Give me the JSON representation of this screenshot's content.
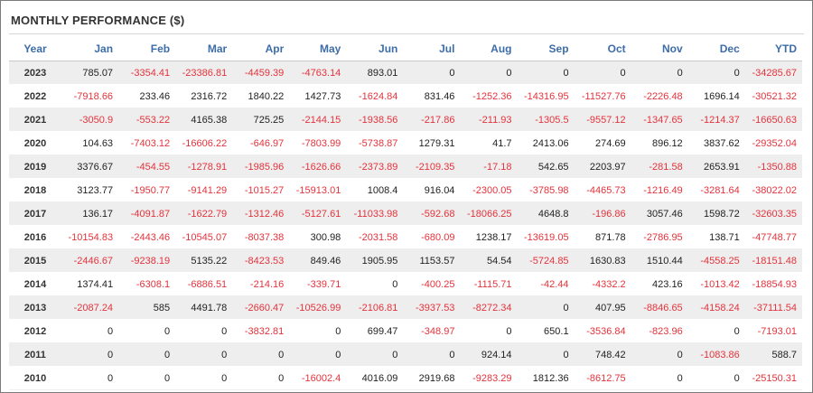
{
  "title": "MONTHLY PERFORMANCE ($)",
  "colors": {
    "header": "#3d6da8",
    "negative": "#e4333c",
    "stripe": "#eeeeee"
  },
  "columns": [
    "Year",
    "Jan",
    "Feb",
    "Mar",
    "Apr",
    "May",
    "Jun",
    "Jul",
    "Aug",
    "Sep",
    "Oct",
    "Nov",
    "Dec",
    "YTD"
  ],
  "rows": [
    [
      "2023",
      "785.07",
      "-3354.41",
      "-23386.81",
      "-4459.39",
      "-4763.14",
      "893.01",
      "0",
      "0",
      "0",
      "0",
      "0",
      "0",
      "-34285.67"
    ],
    [
      "2022",
      "-7918.66",
      "233.46",
      "2316.72",
      "1840.22",
      "1427.73",
      "-1624.84",
      "831.46",
      "-1252.36",
      "-14316.95",
      "-11527.76",
      "-2226.48",
      "1696.14",
      "-30521.32"
    ],
    [
      "2021",
      "-3050.9",
      "-553.22",
      "4165.38",
      "725.25",
      "-2144.15",
      "-1938.56",
      "-217.86",
      "-211.93",
      "-1305.5",
      "-9557.12",
      "-1347.65",
      "-1214.37",
      "-16650.63"
    ],
    [
      "2020",
      "104.63",
      "-7403.12",
      "-16606.22",
      "-646.97",
      "-7803.99",
      "-5738.87",
      "1279.31",
      "41.7",
      "2413.06",
      "274.69",
      "896.12",
      "3837.62",
      "-29352.04"
    ],
    [
      "2019",
      "3376.67",
      "-454.55",
      "-1278.91",
      "-1985.96",
      "-1626.66",
      "-2373.89",
      "-2109.35",
      "-17.18",
      "542.65",
      "2203.97",
      "-281.58",
      "2653.91",
      "-1350.88"
    ],
    [
      "2018",
      "3123.77",
      "-1950.77",
      "-9141.29",
      "-1015.27",
      "-15913.01",
      "1008.4",
      "916.04",
      "-2300.05",
      "-3785.98",
      "-4465.73",
      "-1216.49",
      "-3281.64",
      "-38022.02"
    ],
    [
      "2017",
      "136.17",
      "-4091.87",
      "-1622.79",
      "-1312.46",
      "-5127.61",
      "-11033.98",
      "-592.68",
      "-18066.25",
      "4648.8",
      "-196.86",
      "3057.46",
      "1598.72",
      "-32603.35"
    ],
    [
      "2016",
      "-10154.83",
      "-2443.46",
      "-10545.07",
      "-8037.38",
      "300.98",
      "-2031.58",
      "-680.09",
      "1238.17",
      "-13619.05",
      "871.78",
      "-2786.95",
      "138.71",
      "-47748.77"
    ],
    [
      "2015",
      "-2446.67",
      "-9238.19",
      "5135.22",
      "-8423.53",
      "849.46",
      "1905.95",
      "1153.57",
      "54.54",
      "-5724.85",
      "1630.83",
      "1510.44",
      "-4558.25",
      "-18151.48"
    ],
    [
      "2014",
      "1374.41",
      "-6308.1",
      "-6886.51",
      "-214.16",
      "-339.71",
      "0",
      "-400.25",
      "-1115.71",
      "-42.44",
      "-4332.2",
      "423.16",
      "-1013.42",
      "-18854.93"
    ],
    [
      "2013",
      "-2087.24",
      "585",
      "4491.78",
      "-2660.47",
      "-10526.99",
      "-2106.81",
      "-3937.53",
      "-8272.34",
      "0",
      "407.95",
      "-8846.65",
      "-4158.24",
      "-37111.54"
    ],
    [
      "2012",
      "0",
      "0",
      "0",
      "-3832.81",
      "0",
      "699.47",
      "-348.97",
      "0",
      "650.1",
      "-3536.84",
      "-823.96",
      "0",
      "-7193.01"
    ],
    [
      "2011",
      "0",
      "0",
      "0",
      "0",
      "0",
      "0",
      "0",
      "924.14",
      "0",
      "748.42",
      "0",
      "-1083.86",
      "588.7"
    ],
    [
      "2010",
      "0",
      "0",
      "0",
      "0",
      "-16002.4",
      "4016.09",
      "2919.68",
      "-9283.29",
      "1812.36",
      "-8612.75",
      "0",
      "0",
      "-25150.31"
    ]
  ]
}
